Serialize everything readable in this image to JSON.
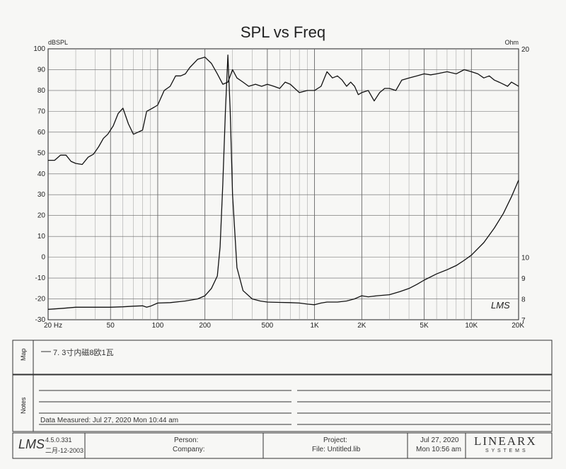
{
  "chart_data": {
    "type": "line",
    "title": "SPL vs Freq",
    "ylabel_left": "dBSPL",
    "ylabel_right": "Ohm",
    "x_scale": "log",
    "xlim": [
      20,
      20000
    ],
    "ylim_left": [
      -30,
      100
    ],
    "ylim_right": [
      7,
      20
    ],
    "x_ticks": [
      {
        "v": 20,
        "label": "20  Hz"
      },
      {
        "v": 50,
        "label": "50"
      },
      {
        "v": 100,
        "label": "100"
      },
      {
        "v": 200,
        "label": "200"
      },
      {
        "v": 500,
        "label": "500"
      },
      {
        "v": 1000,
        "label": "1K"
      },
      {
        "v": 2000,
        "label": "2K"
      },
      {
        "v": 5000,
        "label": "5K"
      },
      {
        "v": 10000,
        "label": "10K"
      },
      {
        "v": 20000,
        "label": "20K"
      }
    ],
    "y_ticks_left": [
      "100",
      "90",
      "80",
      "70",
      "60",
      "50",
      "40",
      "30",
      "20",
      "10",
      "0",
      "-10",
      "-20",
      "-30"
    ],
    "y_ticks_right": [
      {
        "v": 20,
        "label": "20"
      },
      {
        "v": 10,
        "label": "10"
      },
      {
        "v": 9,
        "label": "9"
      },
      {
        "v": 8,
        "label": "8"
      },
      {
        "v": 7,
        "label": "7"
      }
    ],
    "grid": true,
    "series": [
      {
        "axis": "left",
        "x": [
          20,
          22,
          24,
          26,
          28,
          30,
          33,
          36,
          39,
          42,
          45,
          48,
          52,
          56,
          60,
          65,
          70,
          75,
          80,
          85,
          90,
          95,
          100,
          110,
          120,
          130,
          140,
          150,
          160,
          180,
          200,
          220,
          240,
          260,
          280,
          300,
          320,
          350,
          380,
          420,
          460,
          500,
          550,
          600,
          650,
          700,
          800,
          900,
          1000,
          1100,
          1200,
          1300,
          1400,
          1500,
          1600,
          1700,
          1800,
          1900,
          2000,
          2200,
          2400,
          2600,
          2800,
          3000,
          3300,
          3600,
          4000,
          4500,
          5000,
          5500,
          6000,
          7000,
          8000,
          9000,
          10000,
          11000,
          12000,
          13000,
          14000,
          15000,
          16000,
          17000,
          18000,
          19000,
          20000
        ],
        "values": [
          46.5,
          46.5,
          49,
          49,
          46,
          45,
          44.5,
          48,
          49.5,
          53,
          57,
          59,
          63,
          69,
          71.5,
          64,
          59,
          60,
          61,
          70,
          71,
          72,
          73,
          80,
          82,
          87,
          87,
          88,
          91,
          95,
          96,
          93,
          88,
          83,
          84,
          90,
          86,
          84,
          82,
          83,
          82,
          83,
          82,
          81,
          84,
          83,
          79,
          80,
          80,
          82,
          89,
          86,
          87,
          85,
          82,
          84,
          82,
          78,
          79,
          80,
          75,
          79,
          81,
          81,
          80,
          85,
          86,
          87,
          88,
          87.5,
          88,
          89,
          88,
          90,
          89,
          88,
          86,
          87,
          85,
          84,
          83,
          82,
          84,
          83,
          82
        ],
        "note": "SPL curve (dBSPL)"
      },
      {
        "axis": "right",
        "x": [
          20,
          25,
          30,
          40,
          50,
          60,
          70,
          80,
          85,
          90,
          100,
          120,
          150,
          180,
          200,
          220,
          240,
          250,
          260,
          270,
          280,
          290,
          300,
          320,
          350,
          400,
          450,
          500,
          600,
          700,
          800,
          900,
          1000,
          1100,
          1200,
          1400,
          1600,
          1800,
          2000,
          2200,
          2500,
          3000,
          3500,
          4000,
          4500,
          5000,
          6000,
          7000,
          8000,
          9000,
          10000,
          12000,
          14000,
          16000,
          18000,
          20000
        ],
        "values": [
          7.5,
          7.55,
          7.6,
          7.6,
          7.6,
          7.62,
          7.65,
          7.67,
          7.6,
          7.65,
          7.8,
          7.82,
          7.9,
          8.0,
          8.15,
          8.5,
          9.1,
          10.5,
          13.5,
          17.0,
          19.7,
          17.0,
          13.0,
          9.5,
          8.4,
          8.0,
          7.9,
          7.85,
          7.83,
          7.82,
          7.8,
          7.75,
          7.72,
          7.8,
          7.85,
          7.85,
          7.9,
          8.0,
          8.15,
          8.1,
          8.15,
          8.2,
          8.35,
          8.5,
          8.7,
          8.9,
          9.2,
          9.4,
          9.6,
          9.85,
          10.1,
          10.7,
          11.4,
          12.1,
          12.9,
          13.7
        ],
        "note": "Impedance curve (Ohm)"
      }
    ]
  },
  "footer": {
    "map_label": "Map",
    "map_legend": "7. 3寸内磁8欧1瓦",
    "notes_label": "Notes",
    "data_measured": "Data Measured: Jul 27, 2020   Mon 10:44 am",
    "lms_logo": "LMS",
    "version": "4.5.0.331",
    "version_date": "二月-12-2003",
    "person": "Person:",
    "company": "Company:",
    "project": "Project:",
    "file": "File: Untitled.lib",
    "print_date": "Jul 27, 2020",
    "print_time": "Mon 10:56 am",
    "linearx": "LINEARX",
    "systems": "S Y S T E M S"
  }
}
